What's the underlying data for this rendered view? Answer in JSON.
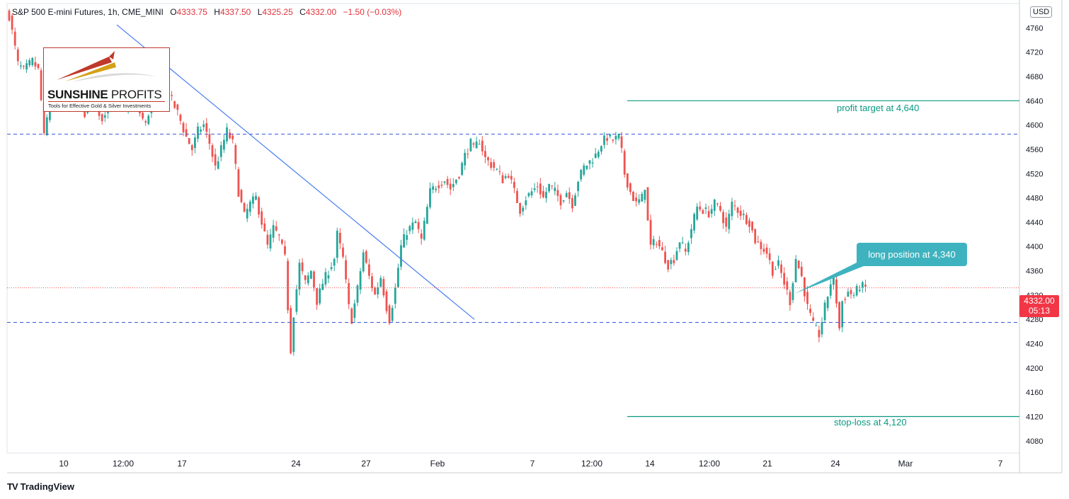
{
  "header": {
    "symbol": "S&P 500 E-mini Futures, 1h, CME_MINI",
    "open_label": "O",
    "open": "4333.75",
    "high_label": "H",
    "high": "4337.50",
    "low_label": "L",
    "low": "4325.25",
    "close_label": "C",
    "close": "4332.00",
    "change": "−1.50 (−0.03%)"
  },
  "currency": "USD",
  "logo": {
    "name_bold": "SUNSHINE",
    "name_thin": " PROFITS",
    "tagline": "Tools for Effective Gold & Silver Investments"
  },
  "footer": {
    "icon": "TV",
    "brand": "TradingView"
  },
  "annotations": {
    "profit_target": "profit target at 4,640",
    "stop_loss": "stop-loss at 4,120",
    "long_position": "long position at 4,340"
  },
  "last_price": {
    "value": "4332.00",
    "countdown": "05:13"
  },
  "colors": {
    "up": "#26a69a",
    "down": "#ef5350",
    "trendline": "#4a7cf0",
    "dashed": "#3b5bdb",
    "target": "#089981",
    "callout": "#3eb3bf",
    "price_tag": "#f23645"
  },
  "chart_data": {
    "type": "candlestick",
    "title": "S&P 500 E-mini Futures, 1h, CME_MINI",
    "ylim": [
      4060,
      4800
    ],
    "y_ticks": [
      4760,
      4720,
      4680,
      4640,
      4600,
      4560,
      4520,
      4480,
      4440,
      4400,
      4360,
      4320,
      4280,
      4240,
      4200,
      4160,
      4120,
      4080
    ],
    "x_ticks": [
      "10",
      "12:00",
      "17",
      "24",
      "27",
      "Feb",
      "7",
      "12:00",
      "14",
      "12:00",
      "21",
      "24",
      "Mar",
      "7"
    ],
    "grid": false,
    "trend_path": [
      [
        0,
        4780
      ],
      [
        3,
        4700
      ],
      [
        5,
        4690
      ],
      [
        8,
        4705
      ],
      [
        10,
        4690
      ],
      [
        11,
        4640
      ],
      [
        12,
        4580
      ],
      [
        14,
        4640
      ],
      [
        17,
        4680
      ],
      [
        20,
        4670
      ],
      [
        23,
        4640
      ],
      [
        26,
        4620
      ],
      [
        28,
        4660
      ],
      [
        30,
        4630
      ],
      [
        32,
        4610
      ],
      [
        35,
        4650
      ],
      [
        37,
        4665
      ],
      [
        40,
        4630
      ],
      [
        43,
        4650
      ],
      [
        45,
        4620
      ],
      [
        47,
        4600
      ],
      [
        49,
        4640
      ],
      [
        52,
        4660
      ],
      [
        55,
        4650
      ],
      [
        58,
        4620
      ],
      [
        61,
        4580
      ],
      [
        63,
        4560
      ],
      [
        65,
        4590
      ],
      [
        67,
        4600
      ],
      [
        69,
        4570
      ],
      [
        71,
        4530
      ],
      [
        73,
        4560
      ],
      [
        75,
        4590
      ],
      [
        77,
        4570
      ],
      [
        79,
        4490
      ],
      [
        81,
        4450
      ],
      [
        83,
        4470
      ],
      [
        85,
        4480
      ],
      [
        87,
        4440
      ],
      [
        89,
        4400
      ],
      [
        91,
        4430
      ],
      [
        93,
        4415
      ],
      [
        95,
        4380
      ],
      [
        96,
        4300
      ],
      [
        97,
        4230
      ],
      [
        98,
        4290
      ],
      [
        100,
        4370
      ],
      [
        102,
        4340
      ],
      [
        104,
        4360
      ],
      [
        106,
        4310
      ],
      [
        108,
        4340
      ],
      [
        110,
        4360
      ],
      [
        112,
        4380
      ],
      [
        113,
        4420
      ],
      [
        115,
        4380
      ],
      [
        117,
        4300
      ],
      [
        118,
        4280
      ],
      [
        120,
        4330
      ],
      [
        122,
        4390
      ],
      [
        124,
        4350
      ],
      [
        126,
        4320
      ],
      [
        128,
        4350
      ],
      [
        130,
        4300
      ],
      [
        131,
        4280
      ],
      [
        133,
        4330
      ],
      [
        135,
        4400
      ],
      [
        137,
        4425
      ],
      [
        140,
        4440
      ],
      [
        142,
        4410
      ],
      [
        145,
        4490
      ],
      [
        147,
        4500
      ],
      [
        150,
        4510
      ],
      [
        152,
        4495
      ],
      [
        155,
        4520
      ],
      [
        157,
        4550
      ],
      [
        159,
        4570
      ],
      [
        160,
        4560
      ],
      [
        162,
        4575
      ],
      [
        164,
        4545
      ],
      [
        166,
        4535
      ],
      [
        168,
        4525
      ],
      [
        170,
        4510
      ],
      [
        172,
        4520
      ],
      [
        174,
        4490
      ],
      [
        176,
        4460
      ],
      [
        178,
        4480
      ],
      [
        180,
        4490
      ],
      [
        182,
        4500
      ],
      [
        184,
        4480
      ],
      [
        186,
        4500
      ],
      [
        188,
        4490
      ],
      [
        190,
        4475
      ],
      [
        192,
        4490
      ],
      [
        194,
        4470
      ],
      [
        196,
        4510
      ],
      [
        198,
        4530
      ],
      [
        200,
        4540
      ],
      [
        202,
        4550
      ],
      [
        204,
        4570
      ],
      [
        206,
        4580
      ],
      [
        208,
        4575
      ],
      [
        210,
        4580
      ],
      [
        211,
        4555
      ],
      [
        212,
        4520
      ],
      [
        214,
        4490
      ],
      [
        216,
        4470
      ],
      [
        218,
        4480
      ],
      [
        219,
        4500
      ],
      [
        220,
        4440
      ],
      [
        221,
        4400
      ],
      [
        223,
        4410
      ],
      [
        225,
        4390
      ],
      [
        227,
        4370
      ],
      [
        229,
        4380
      ],
      [
        231,
        4410
      ],
      [
        233,
        4390
      ],
      [
        235,
        4430
      ],
      [
        237,
        4465
      ],
      [
        239,
        4460
      ],
      [
        241,
        4455
      ],
      [
        243,
        4470
      ],
      [
        245,
        4460
      ],
      [
        247,
        4430
      ],
      [
        249,
        4470
      ],
      [
        251,
        4460
      ],
      [
        253,
        4450
      ],
      [
        255,
        4440
      ],
      [
        257,
        4410
      ],
      [
        259,
        4400
      ],
      [
        261,
        4390
      ],
      [
        263,
        4360
      ],
      [
        265,
        4370
      ],
      [
        267,
        4340
      ],
      [
        269,
        4310
      ],
      [
        271,
        4380
      ],
      [
        273,
        4350
      ],
      [
        275,
        4300
      ],
      [
        277,
        4270
      ],
      [
        279,
        4255
      ],
      [
        281,
        4300
      ],
      [
        283,
        4340
      ],
      [
        284,
        4345
      ],
      [
        285,
        4310
      ],
      [
        286,
        4265
      ],
      [
        287,
        4310
      ],
      [
        289,
        4325
      ],
      [
        291,
        4320
      ],
      [
        293,
        4335
      ],
      [
        295,
        4332
      ]
    ],
    "trendline": [
      [
        4765,
        0.0
      ],
      [
        4280,
        1.0
      ]
    ],
    "resistance_level": 4585,
    "support_level": 4275,
    "profit_target": 4640,
    "stop_loss": 4120,
    "last_price": 4332
  }
}
